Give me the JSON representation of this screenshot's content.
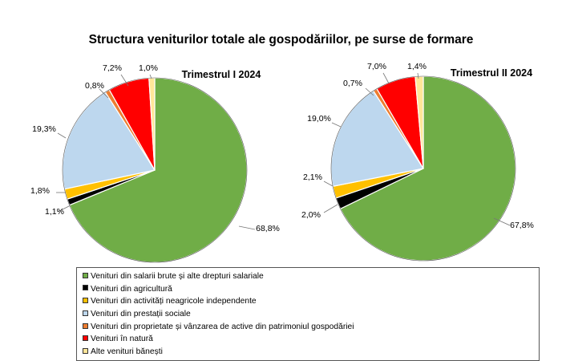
{
  "title": "Structura veniturilor totale ale gospodăriilor, pe surse de formare",
  "chart_data": [
    {
      "type": "pie",
      "title": "Trimestrul  I 2024",
      "categories": [
        "Venituri din salarii brute și alte drepturi salariale",
        "Venituri din agricultură",
        "Venituri din activități neagricole independente",
        "Venituri din prestații sociale",
        "Venituri din proprietate și vânzarea de active din patrimoniul gospodăriei",
        "Venituri în natură",
        "Alte venituri bănești"
      ],
      "values": [
        68.8,
        1.1,
        1.8,
        19.3,
        0.8,
        7.2,
        1.0
      ],
      "labels": [
        "68,8%",
        "1,1%",
        "1,8%",
        "19,3%",
        "0,8%",
        "7,2%",
        "1,0%"
      ]
    },
    {
      "type": "pie",
      "title": "Trimestrul  II 2024",
      "categories": [
        "Venituri din salarii brute și alte drepturi salariale",
        "Venituri din agricultură",
        "Venituri din activități neagricole independente",
        "Venituri din prestații sociale",
        "Venituri din proprietate și vânzarea de active din patrimoniul gospodăriei",
        "Venituri în natură",
        "Alte venituri bănești"
      ],
      "values": [
        67.8,
        2.0,
        2.1,
        19.0,
        0.7,
        7.0,
        1.4
      ],
      "labels": [
        "67,8%",
        "2,0%",
        "2,1%",
        "19,0%",
        "0,7%",
        "7,0%",
        "1,4%"
      ]
    }
  ],
  "colors": [
    "#70ad47",
    "#000000",
    "#ffc000",
    "#bdd7ee",
    "#ed7d31",
    "#ff0000",
    "#ffe699"
  ],
  "legend": {
    "placement": "bottom",
    "items": [
      "Venituri din salarii brute și alte drepturi salariale",
      "Venituri din agricultură",
      "Venituri din activități neagricole independente",
      "Venituri din prestații sociale",
      "Venituri din proprietate și vânzarea de active din patrimoniul gospodăriei",
      "Venituri în natură",
      "Alte venituri bănești"
    ]
  }
}
